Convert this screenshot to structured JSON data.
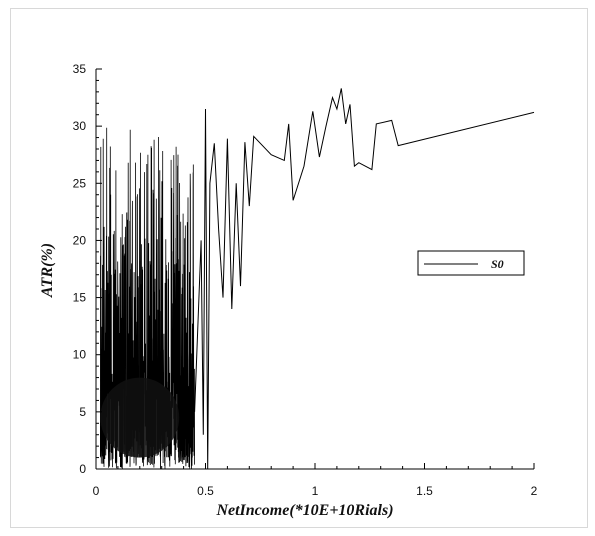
{
  "chart_data": {
    "type": "line",
    "title": "",
    "xlabel": "NetIncome(*10E+10Rials)",
    "ylabel": "ATR(%)",
    "xlim": [
      0,
      2
    ],
    "ylim": [
      0,
      35
    ],
    "xticks": [
      0,
      0.5,
      1,
      1.5,
      2
    ],
    "yticks": [
      0,
      5,
      10,
      15,
      20,
      25,
      30,
      35
    ],
    "xtick_labels": [
      "0",
      "0.5",
      "1",
      "1.5",
      "2"
    ],
    "ytick_labels": [
      "0",
      "5",
      "10",
      "15",
      "20",
      "25",
      "30",
      "35"
    ],
    "grid": false,
    "legend_position": "right",
    "series": [
      {
        "name": "S0",
        "color": "#000000",
        "dense_region": {
          "x_range": [
            0.02,
            0.45
          ],
          "y_range": [
            0,
            30
          ],
          "core_y_range": [
            1,
            9
          ]
        },
        "x": [
          0.45,
          0.48,
          0.49,
          0.5,
          0.51,
          0.52,
          0.54,
          0.56,
          0.58,
          0.6,
          0.62,
          0.64,
          0.66,
          0.68,
          0.7,
          0.72,
          0.8,
          0.86,
          0.88,
          0.9,
          0.95,
          0.99,
          1.02,
          1.05,
          1.08,
          1.1,
          1.12,
          1.14,
          1.16,
          1.18,
          1.2,
          1.26,
          1.28,
          1.35,
          1.38,
          2.0
        ],
        "y": [
          5,
          20,
          3,
          31.5,
          0,
          25,
          28.5,
          21,
          15,
          28.9,
          14,
          25,
          16,
          28.6,
          23,
          29.1,
          27.5,
          27,
          30.2,
          23.5,
          26.5,
          31.3,
          27.3,
          30,
          32.5,
          31.5,
          33.3,
          30.2,
          31.9,
          26.5,
          26.8,
          26.2,
          30.2,
          30.5,
          28.3,
          31.2
        ]
      }
    ]
  }
}
